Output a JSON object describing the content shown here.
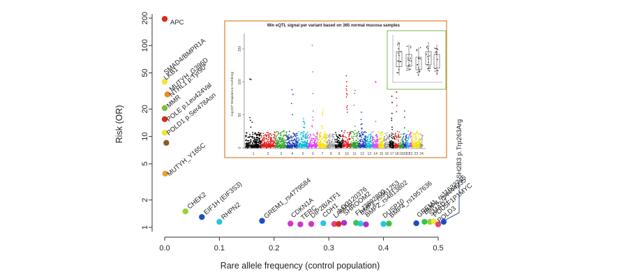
{
  "chart_data": {
    "type": "scatter",
    "xlabel": "Rare allele frequency (control population)",
    "ylabel": "Risk (OR)",
    "xlim": [
      -0.02,
      0.56
    ],
    "ylim": [
      0.85,
      230
    ],
    "y_scale": "log",
    "x_ticks": [
      "0.0",
      "0.1",
      "0.2",
      "0.3",
      "0.4",
      "0.5"
    ],
    "y_ticks": [
      "1",
      "2",
      "5",
      "10",
      "20",
      "50",
      "100",
      "200"
    ],
    "grid": false,
    "points": [
      {
        "label": "APC",
        "x": 0.0,
        "y": 196,
        "color": "#d62d1e"
      },
      {
        "label": "SMAD4/BMPR1A",
        "x": 0.0,
        "y": 40,
        "color": "#f2e63c"
      },
      {
        "label": "LKB1",
        "x": 0.0,
        "y": 40,
        "color": "#f2e63c"
      },
      {
        "label": "MUTYH_G396D",
        "x": 0.005,
        "y": 29,
        "color": "#e98b2a"
      },
      {
        "label": "NTHL1 p.Tyr90*",
        "x": 0.005,
        "y": 29,
        "color": "#e98b2a"
      },
      {
        "label": "MMR",
        "x": 0.0,
        "y": 20.5,
        "color": "#7cbf3a"
      },
      {
        "label": "POLE p.Leu424Val",
        "x": 0.0,
        "y": 15.5,
        "color": "#d62d1e"
      },
      {
        "label": "POLD1 p.Ser478Asn",
        "x": 0.0,
        "y": 11,
        "color": "#f2e63c"
      },
      {
        "label": "",
        "x": 0.003,
        "y": 8.5,
        "color": "#8a5a2b"
      },
      {
        "label": "MUTYH_Y165C",
        "x": 0.001,
        "y": 3.9,
        "color": "#e9a12a"
      },
      {
        "label": "CHEK2",
        "x": 0.038,
        "y": 1.5,
        "color": "#8fd433"
      },
      {
        "label": "EIF1H (EIF3S3)",
        "x": 0.068,
        "y": 1.3,
        "color": "#1a4fc4"
      },
      {
        "label": "RHPN2",
        "x": 0.1,
        "y": 1.15,
        "color": "#28c4e8"
      },
      {
        "label": "GREM1_rs4779584",
        "x": 0.178,
        "y": 1.18,
        "color": "#1a4fc4"
      },
      {
        "label": "CDKN1A",
        "x": 0.23,
        "y": 1.1,
        "color": "#d436c8"
      },
      {
        "label": "TERC",
        "x": 0.248,
        "y": 1.08,
        "color": "#c23ad6"
      },
      {
        "label": "DIP2B/ATF1",
        "x": 0.268,
        "y": 1.09,
        "color": "#d436c8"
      },
      {
        "label": "CDH1",
        "x": 0.29,
        "y": 1.11,
        "color": "#28c4e8"
      },
      {
        "label": "LAMA5",
        "x": 0.31,
        "y": 1.09,
        "color": "#e8407a"
      },
      {
        "label": "LOC120376",
        "x": 0.318,
        "y": 1.09,
        "color": "#d62d1e"
      },
      {
        "label": "SHROOM2",
        "x": 0.328,
        "y": 1.12,
        "color": "#a535c9"
      },
      {
        "label": "FLJ3802800",
        "x": 0.35,
        "y": 1.12,
        "color": "#39c44a"
      },
      {
        "label": "BMP2_rs961253",
        "x": 0.358,
        "y": 1.1,
        "color": "#28c4e8"
      },
      {
        "label": "BMP2_rs4813802",
        "x": 0.368,
        "y": 1.08,
        "color": "#a535c9"
      },
      {
        "label": "DUSP10",
        "x": 0.4,
        "y": 1.09,
        "color": "#28c4e8"
      },
      {
        "label": "BMP4_rs1957636",
        "x": 0.41,
        "y": 1.1,
        "color": "#39c44a"
      },
      {
        "label": "GREM1_rs11632715",
        "x": 0.46,
        "y": 1.11,
        "color": "#1a4fc4"
      },
      {
        "label": "BMP4_rs4444235",
        "x": 0.475,
        "y": 1.15,
        "color": "#39c44a"
      },
      {
        "label": "SMAD7",
        "x": 0.485,
        "y": 1.15,
        "color": "#8fd433"
      },
      {
        "label": "POU5F1P1MYC",
        "x": 0.492,
        "y": 1.16,
        "color": "#f2e63c"
      },
      {
        "label": "POLD3",
        "x": 0.5,
        "y": 1.08,
        "color": "#e8407a"
      },
      {
        "label": "SH2B3 p.Trp263Arg",
        "x": 0.51,
        "y": 1.15,
        "color": "#1a4fc4"
      }
    ]
  },
  "inset": {
    "title": "Min eQTL signal per variant based on 365 normal mucosa samples",
    "ylabel": "-log10(P Benjamini & Hochberg)",
    "y_ticks": [
      "0",
      "50",
      "100",
      "150"
    ],
    "chromosomes": [
      "1",
      "2",
      "3",
      "4",
      "5",
      "6",
      "7",
      "8",
      "9",
      "10",
      "11",
      "12",
      "13",
      "14",
      "15",
      "16",
      "17",
      "18",
      "19",
      "20",
      "21",
      "22",
      "23",
      "24"
    ],
    "colors": [
      "#000000",
      "#e31a1c",
      "#33a02c",
      "#1f3ab4",
      "#00bcd4",
      "#e040fb",
      "#f5e100",
      "#9e9e9e",
      "#000000",
      "#e31a1c",
      "#33a02c",
      "#1f3ab4",
      "#00bcd4",
      "#e040fb",
      "#f5e100",
      "#9e9e9e",
      "#000000",
      "#e31a1c",
      "#33a02c",
      "#1f3ab4",
      "#00bcd4",
      "#e040fb",
      "#f5e100",
      "#9e9e9e"
    ],
    "border_color": "#e0893a",
    "subinset_border_color": "#7ab648"
  }
}
